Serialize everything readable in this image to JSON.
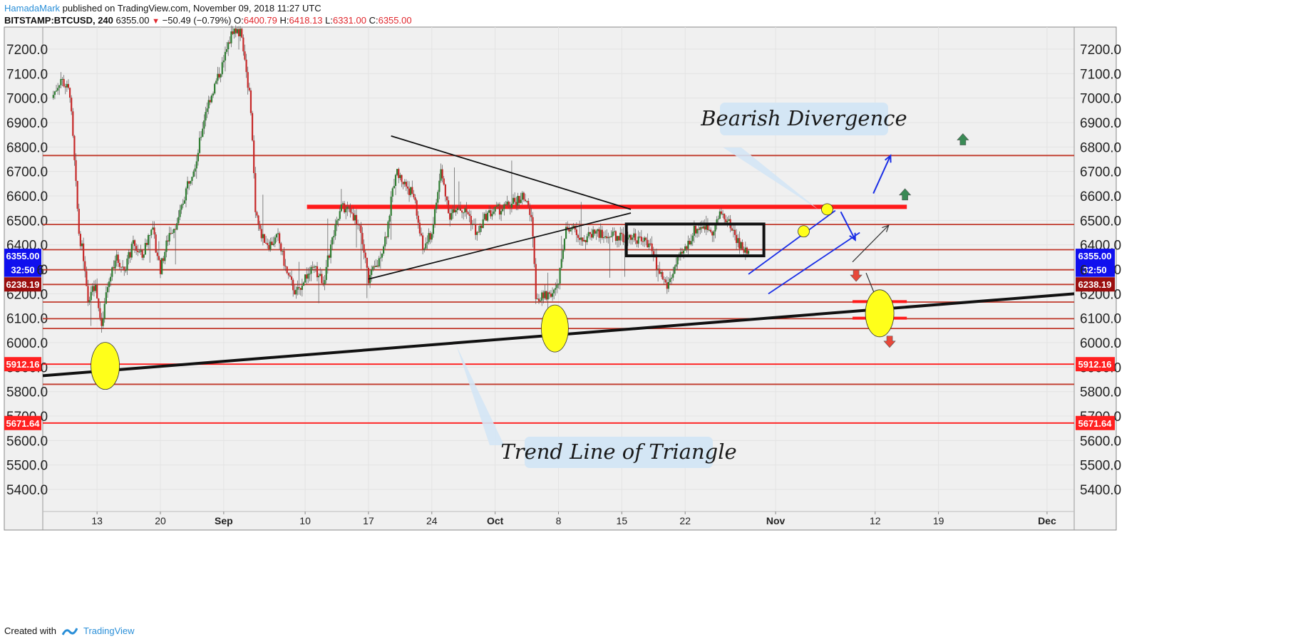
{
  "header": {
    "author": "HamadaMark",
    "published": "published on TradingView.com, November 09, 2018 11:27 UTC",
    "symbol": "BITSTAMP:BTCUSD, 240",
    "last": "6355.00",
    "change": "−50.49 (−0.79%)",
    "open_label": "O:",
    "open": "6400.79",
    "high_label": "H:",
    "high": "6418.13",
    "low_label": "L:",
    "low": "6331.00",
    "close_label": "C:",
    "close": "6355.00"
  },
  "footer": {
    "created_with": "Created with",
    "brand": "TradingView"
  },
  "colors": {
    "up": "#2f7d32",
    "down": "#c62828",
    "hline": "#c0392b",
    "resistance": "#ff1a1a",
    "badge_blue": "#1010ee",
    "badge_dark": "#9b0f0f",
    "badge_red": "#ff2020",
    "highlight": "#ffff1a",
    "annot_bg": "#d4e6f5",
    "channel": "#1a2ee6"
  },
  "chart_data": {
    "type": "candlestick",
    "title": "",
    "xlabel": "",
    "ylabel": "",
    "ylim": [
      5310,
      7290
    ],
    "yticks": [
      "5400.0",
      "5500.0",
      "5600.0",
      "5700.0",
      "5800.0",
      "5900.0",
      "6000.0",
      "6100.0",
      "6200.0",
      "6300.0",
      "6400.0",
      "6500.0",
      "6600.0",
      "6700.0",
      "6800.0",
      "6900.0",
      "7000.0",
      "7100.0",
      "7200.0"
    ],
    "x_start_day": 8,
    "xticks": [
      {
        "label": "13",
        "day": 13,
        "bold": false
      },
      {
        "label": "20",
        "day": 20,
        "bold": false
      },
      {
        "label": "Sep",
        "day": 27,
        "bold": true
      },
      {
        "label": "10",
        "day": 36,
        "bold": false
      },
      {
        "label": "17",
        "day": 43,
        "bold": false
      },
      {
        "label": "24",
        "day": 50,
        "bold": false
      },
      {
        "label": "Oct",
        "day": 57,
        "bold": true
      },
      {
        "label": "8",
        "day": 64,
        "bold": false
      },
      {
        "label": "15",
        "day": 71,
        "bold": false
      },
      {
        "label": "22",
        "day": 78,
        "bold": false
      },
      {
        "label": "Nov",
        "day": 88,
        "bold": true
      },
      {
        "label": "12",
        "day": 99,
        "bold": false
      },
      {
        "label": "19",
        "day": 106,
        "bold": false
      },
      {
        "label": "Dec",
        "day": 118,
        "bold": true
      }
    ],
    "price_path": [
      [
        8,
        7000
      ],
      [
        9,
        7080
      ],
      [
        10,
        7020
      ],
      [
        11,
        6450
      ],
      [
        11.5,
        6350
      ],
      [
        12,
        6150
      ],
      [
        12.5,
        6250
      ],
      [
        13,
        6200
      ],
      [
        13.5,
        6050
      ],
      [
        14,
        6200
      ],
      [
        15,
        6350
      ],
      [
        16,
        6300
      ],
      [
        17,
        6400
      ],
      [
        18,
        6350
      ],
      [
        19,
        6480
      ],
      [
        20,
        6300
      ],
      [
        21,
        6450
      ],
      [
        22,
        6500
      ],
      [
        23,
        6650
      ],
      [
        24,
        6750
      ],
      [
        25,
        6950
      ],
      [
        26,
        7050
      ],
      [
        27,
        7150
      ],
      [
        28,
        7280
      ],
      [
        29,
        7260
      ],
      [
        30,
        6960
      ],
      [
        30.5,
        6550
      ],
      [
        31,
        6450
      ],
      [
        32,
        6400
      ],
      [
        33,
        6430
      ],
      [
        34,
        6280
      ],
      [
        35,
        6200
      ],
      [
        36,
        6270
      ],
      [
        37,
        6300
      ],
      [
        38,
        6250
      ],
      [
        39,
        6420
      ],
      [
        40,
        6550
      ],
      [
        41,
        6540
      ],
      [
        42,
        6480
      ],
      [
        43,
        6260
      ],
      [
        44,
        6320
      ],
      [
        45,
        6450
      ],
      [
        46,
        6700
      ],
      [
        47,
        6650
      ],
      [
        48,
        6600
      ],
      [
        49,
        6380
      ],
      [
        50,
        6450
      ],
      [
        51,
        6700
      ],
      [
        52,
        6520
      ],
      [
        53,
        6550
      ],
      [
        54,
        6530
      ],
      [
        55,
        6440
      ],
      [
        56,
        6520
      ],
      [
        57,
        6540
      ],
      [
        58,
        6550
      ],
      [
        59,
        6570
      ],
      [
        60,
        6600
      ],
      [
        61,
        6520
      ],
      [
        61.5,
        6200
      ],
      [
        62,
        6180
      ],
      [
        63,
        6200
      ],
      [
        64,
        6230
      ],
      [
        64.5,
        6400
      ],
      [
        65,
        6480
      ],
      [
        66,
        6450
      ],
      [
        67,
        6420
      ],
      [
        68,
        6460
      ],
      [
        69,
        6430
      ],
      [
        70,
        6440
      ],
      [
        71,
        6430
      ],
      [
        72,
        6440
      ],
      [
        73,
        6420
      ],
      [
        74,
        6410
      ],
      [
        75,
        6300
      ],
      [
        76,
        6230
      ],
      [
        77,
        6320
      ],
      [
        78,
        6380
      ],
      [
        79,
        6460
      ],
      [
        80,
        6480
      ],
      [
        81,
        6460
      ],
      [
        82,
        6530
      ],
      [
        83,
        6480
      ],
      [
        84,
        6400
      ],
      [
        85,
        6360
      ]
    ],
    "horizontal_levels": [
      6765,
      6483,
      6380,
      6298,
      6238,
      6166,
      6098,
      6058,
      5912.16,
      5830,
      5671.64
    ],
    "resistance_level": 6555,
    "badges": [
      {
        "label": "6355.00",
        "value": 6355,
        "color": "#1010ee"
      },
      {
        "label": "32:50",
        "value": 6298,
        "color": "#1010ee"
      },
      {
        "label": "6238.19",
        "value": 6238.19,
        "color": "#9b0f0f"
      },
      {
        "label": "5912.16",
        "value": 5912.16,
        "color": "#ff2020"
      },
      {
        "label": "5671.64",
        "value": 5671.64,
        "color": "#ff2020"
      }
    ],
    "right_badge_clip": "6",
    "annotations": [
      {
        "text": "Bearish Divergence"
      },
      {
        "text": "Trend Line of Triangle"
      }
    ],
    "grid": true,
    "legend": "none"
  }
}
